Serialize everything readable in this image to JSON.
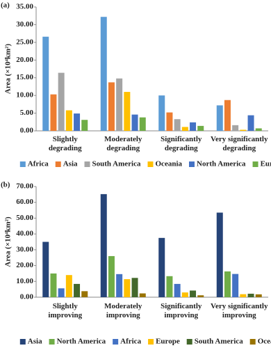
{
  "chart_data": [
    {
      "type": "bar",
      "panel": "(a)",
      "y_label": "Area (×10⁴km²)",
      "categories": [
        "Slightly degrading",
        "Moderately degrading",
        "Significantly degrading",
        "Very significantly degrading"
      ],
      "series": [
        {
          "name": "Africa",
          "color": "#5b9bd5",
          "values": [
            26.6,
            32.2,
            10.0,
            7.2
          ]
        },
        {
          "name": "Asia",
          "color": "#ed7d31",
          "values": [
            10.3,
            13.7,
            5.2,
            8.7
          ]
        },
        {
          "name": "South America",
          "color": "#a5a5a5",
          "values": [
            16.4,
            14.8,
            3.3,
            1.6
          ]
        },
        {
          "name": "Oceania",
          "color": "#ffc000",
          "values": [
            5.8,
            11.0,
            1.1,
            0.3
          ]
        },
        {
          "name": "North America",
          "color": "#4472c4",
          "values": [
            4.9,
            4.6,
            2.4,
            4.4
          ]
        },
        {
          "name": "Europe",
          "color": "#70ad47",
          "values": [
            3.1,
            3.8,
            1.4,
            0.7
          ]
        }
      ],
      "ylim": [
        0,
        35
      ],
      "yticks": [
        {
          "value": 0,
          "label": "0.00"
        },
        {
          "value": 5,
          "label": "5.00"
        },
        {
          "value": 10,
          "label": "10.00"
        },
        {
          "value": 15,
          "label": "15.00"
        },
        {
          "value": 20,
          "label": "20.00"
        },
        {
          "value": 25,
          "label": "25.00"
        },
        {
          "value": 30,
          "label": "30.00"
        },
        {
          "value": 35,
          "label": "35.00"
        }
      ],
      "legend": "bottom"
    },
    {
      "type": "bar",
      "panel": "(b)",
      "y_label": "Area (×10⁴km²)",
      "categories": [
        "Slightly improving",
        "Moderately improving",
        "Significantly improving",
        "Very significantly improving"
      ],
      "series": [
        {
          "name": "Asia",
          "color": "#264478",
          "values": [
            35.0,
            65.2,
            37.5,
            53.5
          ]
        },
        {
          "name": "North America",
          "color": "#70ad47",
          "values": [
            15.0,
            26.0,
            13.3,
            16.3
          ]
        },
        {
          "name": "Africa",
          "color": "#4472c4",
          "values": [
            5.6,
            14.6,
            8.4,
            14.7
          ]
        },
        {
          "name": "Europe",
          "color": "#ffc000",
          "values": [
            14.0,
            11.4,
            3.0,
            1.9
          ]
        },
        {
          "name": "South America",
          "color": "#43682b",
          "values": [
            8.4,
            12.2,
            4.2,
            2.2
          ]
        },
        {
          "name": "Oceania",
          "color": "#997300",
          "values": [
            3.8,
            2.4,
            1.2,
            1.8
          ]
        }
      ],
      "ylim": [
        0,
        70
      ],
      "yticks": [
        {
          "value": 0,
          "label": "0.00"
        },
        {
          "value": 10,
          "label": "10.00"
        },
        {
          "value": 20,
          "label": "20.00"
        },
        {
          "value": 30,
          "label": "30.00"
        },
        {
          "value": 40,
          "label": "40.00"
        },
        {
          "value": 50,
          "label": "50.00"
        },
        {
          "value": 60,
          "label": "60.00"
        },
        {
          "value": 70,
          "label": "70.00"
        }
      ],
      "legend": "bottom"
    }
  ]
}
